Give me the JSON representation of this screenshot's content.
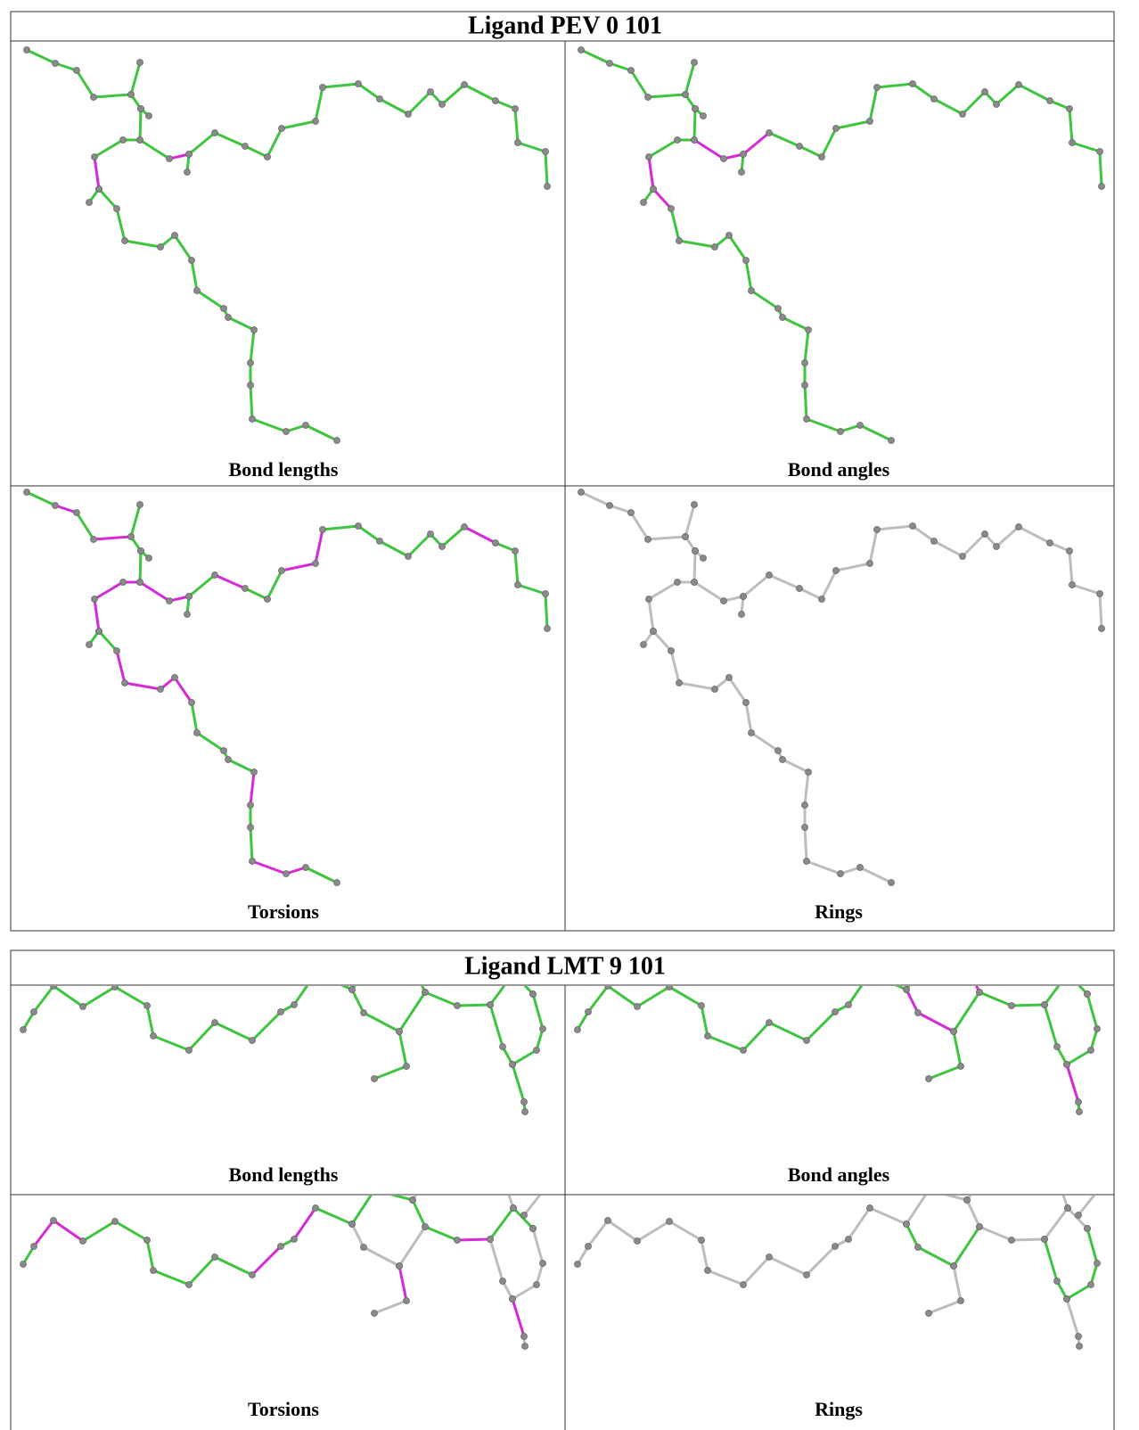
{
  "tables": [
    {
      "title": "Ligand PEV 0 101",
      "panels": [
        "Bond lengths",
        "Bond angles",
        "Torsions",
        "Rings"
      ]
    },
    {
      "title": "Ligand LMT 9 101",
      "panels": [
        "Bond lengths",
        "Bond angles",
        "Torsions",
        "Rings"
      ]
    }
  ]
}
